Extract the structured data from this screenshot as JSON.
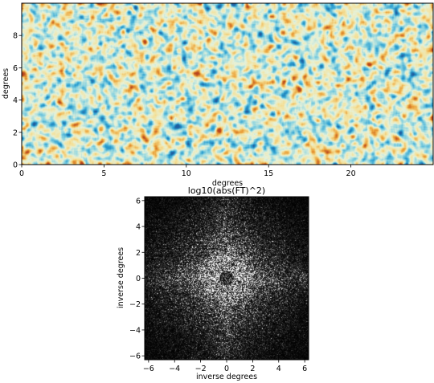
{
  "chart_data": [
    {
      "type": "heatmap",
      "title": "",
      "xlabel": "degrees",
      "ylabel": "degrees",
      "xlim": [
        0,
        25
      ],
      "ylim": [
        0,
        10
      ],
      "xticks": [
        0,
        5,
        10,
        15,
        20
      ],
      "yticks": [
        0,
        2,
        4,
        6,
        8
      ],
      "colormap": [
        "#1f5fa0",
        "#2b9fd1",
        "#8ad3e0",
        "#e6f2da",
        "#f4e19a",
        "#eba23a",
        "#b8461f"
      ],
      "grid": false
    },
    {
      "type": "heatmap",
      "title": "log10(abs(FT)^2)",
      "xlabel": "inverse degrees",
      "ylabel": "inverse degrees",
      "xlim": [
        -6.3,
        6.3
      ],
      "ylim": [
        -6.3,
        6.3
      ],
      "xticks": [
        -6,
        -4,
        -2,
        0,
        2,
        4,
        6
      ],
      "yticks": [
        -6,
        -4,
        -2,
        0,
        2,
        4,
        6
      ],
      "colormap": [
        "#000000",
        "#ffffff"
      ],
      "grid": false
    }
  ]
}
